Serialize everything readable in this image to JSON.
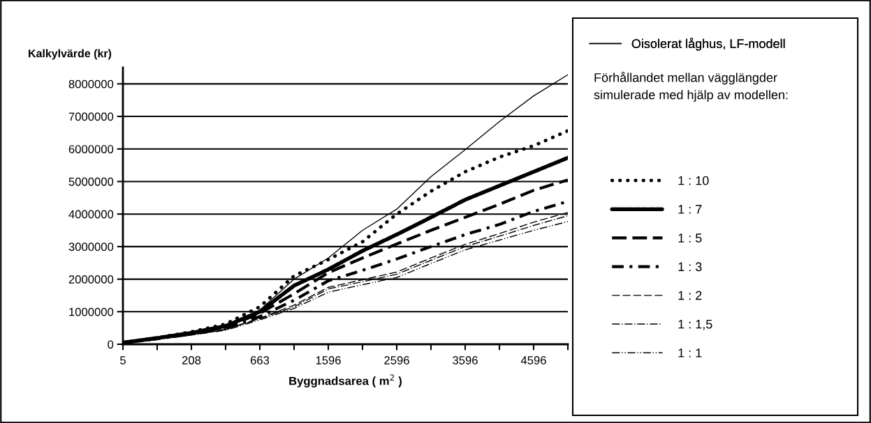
{
  "chart_data": {
    "type": "line",
    "ylabel": "Kalkylvärde (kr)",
    "xlabel": "Byggnadsarea ( m$^{2}$ )",
    "categories": [
      "5",
      null,
      "208",
      null,
      "663",
      null,
      "1596",
      null,
      "2596",
      null,
      "3596",
      null,
      "4596",
      null
    ],
    "ylim": [
      0,
      8500000
    ],
    "yticks": [
      0,
      1000000,
      2000000,
      3000000,
      4000000,
      5000000,
      6000000,
      7000000,
      8000000
    ],
    "grid": "y",
    "legend": "right",
    "annotations": [
      "Förhållandet mellan vägglängder\nsimulerade med hjälp av modellen:"
    ],
    "series": [
      {
        "name": "Oisolerat låghus, LF-modell",
        "color": "#000000",
        "line_style": "solid",
        "values": [
          50000,
          180000,
          330000,
          550000,
          1050000,
          2000000,
          2650000,
          3500000,
          4150000,
          5150000,
          5980000,
          6840000,
          7630000,
          8280000
        ]
      },
      {
        "name": "1 : 10",
        "color": "#000000",
        "line_style": "dotted",
        "values": [
          50000,
          200000,
          380000,
          620000,
          1150000,
          2100000,
          2600000,
          3150000,
          4000000,
          4700000,
          5300000,
          5750000,
          6100000,
          6560000
        ]
      },
      {
        "name": "1 : 7",
        "color": "#000000",
        "line_style": "dashed",
        "values": [
          50000,
          190000,
          350000,
          560000,
          1000000,
          1800000,
          2300000,
          2870000,
          3370000,
          3900000,
          4440000,
          4870000,
          5300000,
          5730000
        ]
      },
      {
        "name": "1 : 5",
        "color": "#000000",
        "line_style": "longdash",
        "values": [
          50000,
          180000,
          330000,
          520000,
          950000,
          1550000,
          2200000,
          2650000,
          3080000,
          3500000,
          3900000,
          4300000,
          4730000,
          5050000
        ]
      },
      {
        "name": "1 : 3",
        "color": "#000000",
        "line_style": "dashdot",
        "values": [
          50000,
          170000,
          310000,
          490000,
          850000,
          1350000,
          1950000,
          2270000,
          2620000,
          3000000,
          3370000,
          3680000,
          4080000,
          4390000
        ]
      },
      {
        "name": "1 : 2",
        "color": "#000000",
        "line_style": "thindash",
        "values": [
          50000,
          160000,
          300000,
          460000,
          800000,
          1200000,
          1750000,
          1980000,
          2220000,
          2650000,
          3070000,
          3400000,
          3750000,
          4050000
        ]
      },
      {
        "name": "1 : 1,5",
        "color": "#000000",
        "line_style": "thindashdot",
        "values": [
          50000,
          160000,
          290000,
          450000,
          780000,
          1150000,
          1700000,
          1920000,
          2150000,
          2580000,
          3000000,
          3320000,
          3650000,
          3950000
        ]
      },
      {
        "name": "1 : 1",
        "color": "#000000",
        "line_style": "thindashdotdot",
        "values": [
          50000,
          150000,
          280000,
          430000,
          750000,
          1100000,
          1600000,
          1830000,
          2050000,
          2480000,
          2900000,
          3200000,
          3500000,
          3770000
        ]
      }
    ]
  }
}
